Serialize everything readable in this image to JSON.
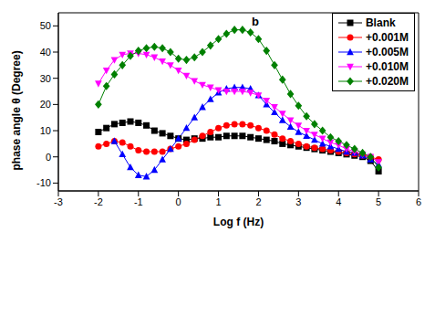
{
  "chart_data": {
    "type": "line",
    "annotations": [
      {
        "text": "b"
      }
    ],
    "x_label": "Log f (Hz)",
    "y_label": "phase angle θ (Degree)",
    "x": [
      -2,
      -1.8,
      -1.6,
      -1.4,
      -1.2,
      -1,
      -0.8,
      -0.6,
      -0.4,
      -0.2,
      0,
      0.2,
      0.4,
      0.6,
      0.8,
      1,
      1.2,
      1.4,
      1.6,
      1.8,
      2,
      2.2,
      2.4,
      2.6,
      2.8,
      3,
      3.2,
      3.4,
      3.6,
      3.8,
      4,
      4.2,
      4.4,
      4.6,
      4.8,
      5
    ],
    "xlim": [
      -3,
      6
    ],
    "xticks": [
      -3,
      -2,
      -1,
      0,
      1,
      2,
      3,
      4,
      5,
      6
    ],
    "ylim": [
      -13,
      55
    ],
    "yticks": [
      -10,
      0,
      10,
      20,
      30,
      40,
      50
    ],
    "grid": false,
    "legend": "upper right",
    "series": [
      {
        "name": "Blank",
        "color": "#000000",
        "marker": "square",
        "values": [
          9.5,
          11,
          12.5,
          13,
          13.5,
          13,
          12,
          10,
          9,
          8,
          7,
          6.5,
          7,
          7,
          7.5,
          7.5,
          8,
          8,
          8,
          7.5,
          7,
          6.5,
          6,
          5,
          4.5,
          4,
          3.5,
          3,
          2.5,
          2,
          1.5,
          1,
          0.5,
          0,
          -1.5,
          -5.5
        ]
      },
      {
        "name": "+0.001M",
        "color": "#ff0000",
        "marker": "circle",
        "values": [
          4,
          5,
          6,
          5.5,
          4,
          2.5,
          2,
          2,
          2,
          3,
          4,
          5,
          6.5,
          8,
          9.5,
          11,
          12,
          12.5,
          12.5,
          12,
          11,
          10,
          8.5,
          7,
          6,
          5,
          4,
          3.5,
          3,
          2.5,
          2,
          1.5,
          1,
          0.5,
          0,
          -1
        ]
      },
      {
        "name": "+0.005M",
        "color": "#0000ff",
        "marker": "triangle",
        "values": [
          null,
          null,
          6,
          1,
          -4,
          -7,
          -7.5,
          -5,
          -1,
          3,
          7,
          11,
          15,
          19,
          22,
          24.5,
          26,
          26.5,
          26.5,
          26,
          23.5,
          20,
          17,
          14,
          11.5,
          9.5,
          8,
          6.5,
          5,
          4,
          3,
          2,
          1.5,
          0.5,
          -1,
          -3
        ]
      },
      {
        "name": "+0.010M",
        "color": "#ff00ff",
        "marker": "triangle-down",
        "values": [
          28,
          33,
          37,
          39,
          39.5,
          39.5,
          39,
          38,
          36.5,
          35,
          33,
          31,
          29,
          27.5,
          26.5,
          25.5,
          25,
          25,
          25,
          24.5,
          23.5,
          21.5,
          19,
          16.5,
          14,
          12,
          10,
          8.5,
          7,
          5.5,
          4.5,
          3,
          2,
          1,
          0,
          -2
        ]
      },
      {
        "name": "+0.020M",
        "color": "#008000",
        "marker": "diamond",
        "values": [
          20,
          27,
          31.5,
          35,
          38.5,
          40.5,
          41.5,
          42,
          41.5,
          40,
          37.5,
          37,
          38,
          40,
          42.5,
          45,
          47,
          48.5,
          48.5,
          47.5,
          45,
          40.5,
          35,
          29.5,
          24,
          19.5,
          15.5,
          12.5,
          10,
          7.5,
          6,
          4.5,
          3,
          1.5,
          0,
          -4
        ]
      }
    ]
  }
}
